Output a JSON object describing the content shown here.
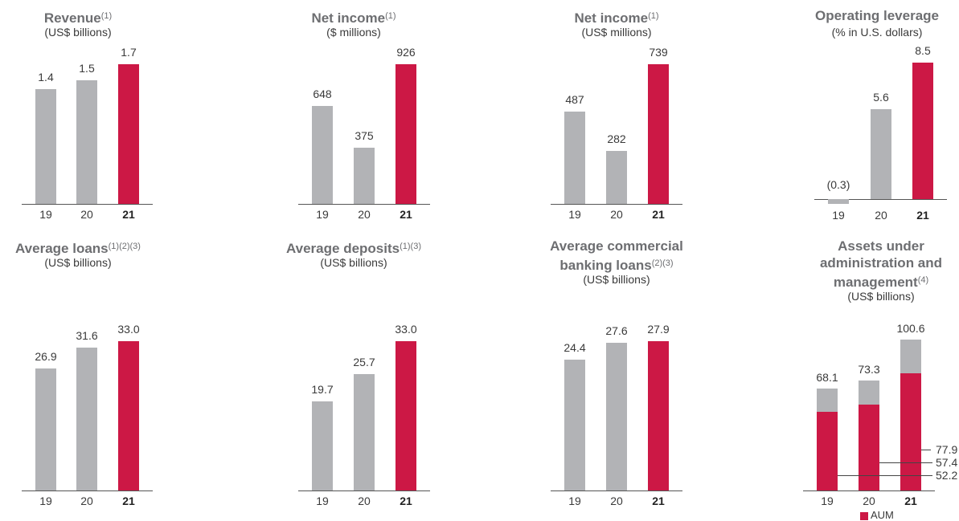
{
  "colors": {
    "prior": "#b2b3b6",
    "current": "#cc1845",
    "text": "#3a3a3a",
    "title": "#6d6e71"
  },
  "chart_data": [
    {
      "type": "bar",
      "title": "Revenue",
      "title_note": "(1)",
      "subtitle": "(US$ billions)",
      "categories": [
        "19",
        "20",
        "21"
      ],
      "values": [
        1.4,
        1.5,
        1.7
      ],
      "value_labels": [
        "1.4",
        "1.5",
        "1.7"
      ],
      "ylim": [
        0,
        1.7
      ]
    },
    {
      "type": "bar",
      "title": "Net income",
      "title_note": "(1)",
      "subtitle": "($ millions)",
      "categories": [
        "19",
        "20",
        "21"
      ],
      "values": [
        648,
        375,
        926
      ],
      "value_labels": [
        "648",
        "375",
        "926"
      ],
      "ylim": [
        0,
        926
      ]
    },
    {
      "type": "bar",
      "title": "Net income",
      "title_note": "(1)",
      "subtitle": "(US$ millions)",
      "categories": [
        "19",
        "20",
        "21"
      ],
      "values": [
        487,
        282,
        739
      ],
      "value_labels": [
        "487",
        "282",
        "739"
      ],
      "ylim": [
        0,
        739
      ]
    },
    {
      "type": "bar",
      "title": "Operating leverage",
      "title_note": "",
      "subtitle": "(% in U.S. dollars)",
      "categories": [
        "19",
        "20",
        "21"
      ],
      "values": [
        -0.3,
        5.6,
        8.5
      ],
      "value_labels": [
        "(0.3)",
        "5.6",
        "8.5"
      ],
      "ylim": [
        -0.3,
        8.5
      ]
    },
    {
      "type": "bar",
      "title": "Average loans",
      "title_note": "(1)(2)(3)",
      "subtitle": "(US$ billions)",
      "categories": [
        "19",
        "20",
        "21"
      ],
      "values": [
        26.9,
        31.6,
        33.0
      ],
      "value_labels": [
        "26.9",
        "31.6",
        "33.0"
      ],
      "ylim": [
        0,
        33.0
      ]
    },
    {
      "type": "bar",
      "title": "Average deposits",
      "title_note": "(1)(3)",
      "subtitle": "(US$ billions)",
      "categories": [
        "19",
        "20",
        "21"
      ],
      "values": [
        19.7,
        25.7,
        33.0
      ],
      "value_labels": [
        "19.7",
        "25.7",
        "33.0"
      ],
      "ylim": [
        0,
        33.0
      ]
    },
    {
      "type": "bar",
      "title": "Average commercial banking loans",
      "title_note": "(2)(3)",
      "subtitle": "(US$ billions)",
      "categories": [
        "19",
        "20",
        "21"
      ],
      "values": [
        24.4,
        27.6,
        27.9
      ],
      "value_labels": [
        "24.4",
        "27.6",
        "27.9"
      ],
      "ylim": [
        0,
        27.9
      ]
    },
    {
      "type": "bar",
      "stacked": true,
      "title": "Assets under administration and management",
      "title_note": "(4)",
      "subtitle": "(US$ billions)",
      "categories": [
        "19",
        "20",
        "21"
      ],
      "totals": [
        68.1,
        73.3,
        100.6
      ],
      "total_labels": [
        "68.1",
        "73.3",
        "100.6"
      ],
      "series": [
        {
          "name": "AUM",
          "values": [
            52.2,
            57.4,
            77.9
          ]
        }
      ],
      "series_labels": [
        "52.2",
        "57.4",
        "77.9"
      ],
      "legend": "bottom",
      "ylim": [
        0,
        100.6
      ]
    }
  ]
}
